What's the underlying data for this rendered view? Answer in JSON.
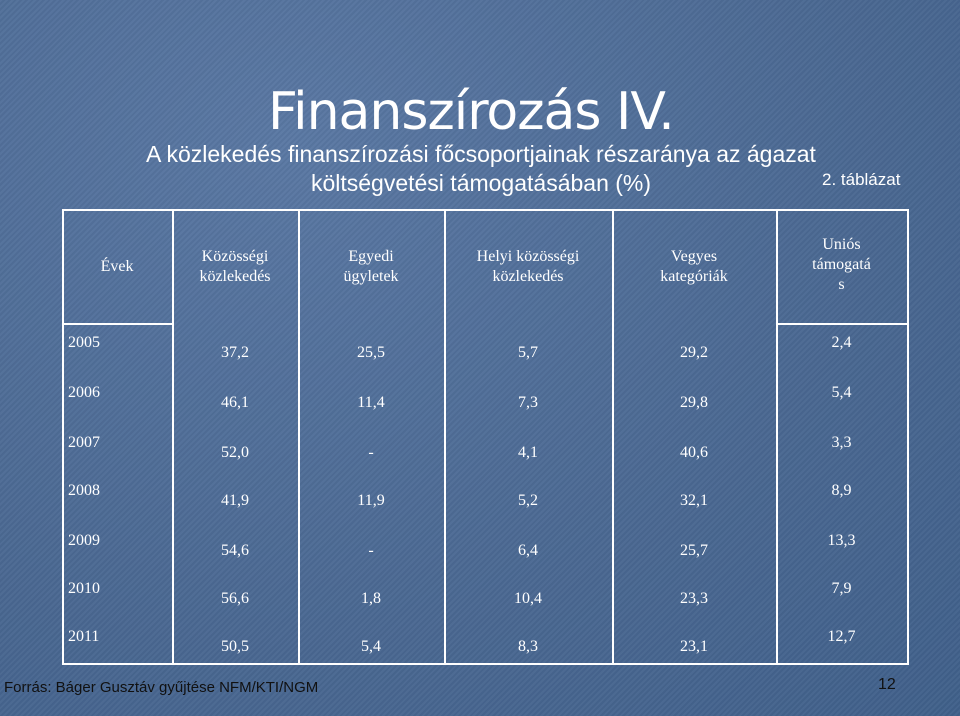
{
  "slide": {
    "title": "Finanszírozás IV.",
    "subtitle_line1": "A közlekedés finanszírozási főcsoportjainak részaránya az ágazat",
    "subtitle_line2": "költségvetési támogatásában (%)",
    "table_number": "2. táblázat",
    "source": "Forrás: Báger Gusztáv gyűjtése NFM/KTI/NGM",
    "page_number": "12"
  },
  "table": {
    "headers": [
      [
        "Évek"
      ],
      [
        "Közösségi",
        "közlekedés"
      ],
      [
        "Egyedi",
        "ügyletek"
      ],
      [
        "Helyi közösségi",
        "közlekedés"
      ],
      [
        "Vegyes",
        "kategóriák"
      ],
      [
        "Uniós",
        "támogatá",
        "s"
      ]
    ],
    "rows": [
      [
        "2005",
        "37,2",
        "25,5",
        "5,7",
        "29,2",
        "2,4"
      ],
      [
        "2006",
        "46,1",
        "11,4",
        "7,3",
        "29,8",
        "5,4"
      ],
      [
        "2007",
        "52,0",
        "-",
        "4,1",
        "40,6",
        "3,3"
      ],
      [
        "2008",
        "41,9",
        "11,9",
        "5,2",
        "32,1",
        "8,9"
      ],
      [
        "2009",
        "54,6",
        "-",
        "6,4",
        "25,7",
        "13,3"
      ],
      [
        "2010",
        "56,6",
        "1,8",
        "10,4",
        "23,3",
        "7,9"
      ],
      [
        "2011",
        "50,5",
        "5,4",
        "8,3",
        "23,1",
        "12,7"
      ]
    ]
  }
}
